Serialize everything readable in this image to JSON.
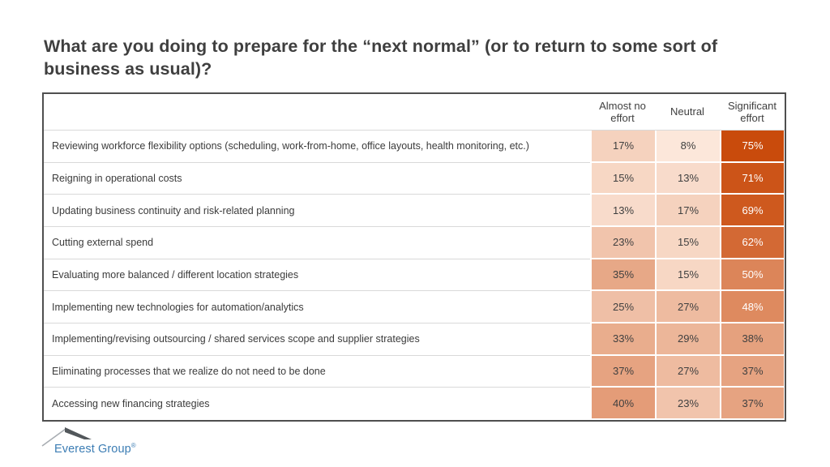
{
  "title": "What are you doing to prepare for the “next normal” (or to return to some sort of\nbusiness as usual)?",
  "logo": {
    "text": "Everest Group",
    "registered": "®"
  },
  "colors": {
    "title_text": "#3F3F3F",
    "table_border": "#4F4F4F",
    "row_separator": "#D9D9D9",
    "logo_blue": "#3C7DB4",
    "logo_dark_gray": "#52575B",
    "logo_light_gray": "#A8ADB2"
  },
  "chart_data": {
    "type": "heatmap",
    "title": "What are you doing to prepare for the “next normal” (or to return to some sort of business as usual)?",
    "columns": [
      "Almost no effort",
      "Neutral",
      "Significant effort"
    ],
    "rows": [
      {
        "label": "Reviewing workforce flexibility options (scheduling, work-from-home, office layouts, health monitoring, etc.)",
        "values": [
          17,
          8,
          75
        ]
      },
      {
        "label": "Reigning in operational costs",
        "values": [
          15,
          13,
          71
        ]
      },
      {
        "label": "Updating business continuity and risk-related planning",
        "values": [
          13,
          17,
          69
        ]
      },
      {
        "label": "Cutting external spend",
        "values": [
          23,
          15,
          62
        ]
      },
      {
        "label": "Evaluating more balanced / different location strategies",
        "values": [
          35,
          15,
          50
        ]
      },
      {
        "label": "Implementing new technologies for automation/analytics",
        "values": [
          25,
          27,
          48
        ]
      },
      {
        "label": "Implementing/revising outsourcing / shared services scope and supplier strategies",
        "values": [
          33,
          29,
          38
        ]
      },
      {
        "label": "Eliminating processes that we realize do not need to be done",
        "values": [
          37,
          27,
          37
        ]
      },
      {
        "label": "Accessing new financing strategies",
        "values": [
          40,
          23,
          37
        ]
      }
    ],
    "value_format": "percent",
    "heatmap": {
      "min_value": 8,
      "max_value": 75,
      "min_color": "#FCE7DA",
      "max_color": "#C94B0C",
      "light_text_threshold": 44,
      "dark_text": "#404040",
      "light_text": "#FFFFFF"
    }
  }
}
